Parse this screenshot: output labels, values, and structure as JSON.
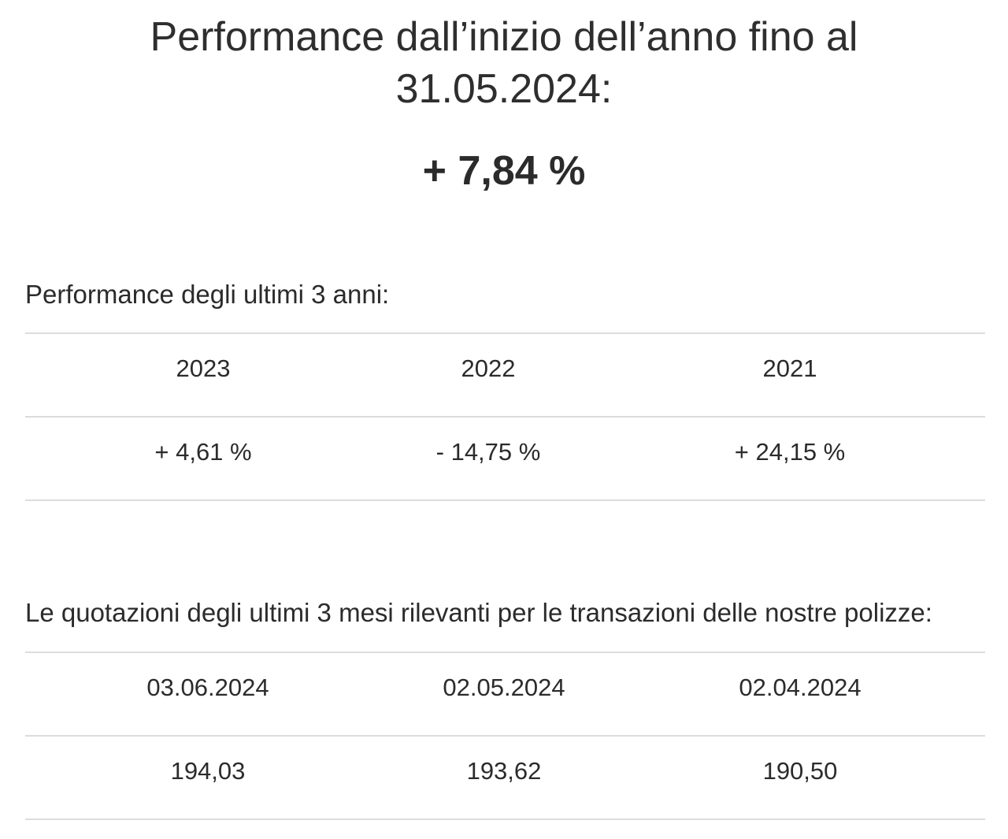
{
  "headline": {
    "line1": "Performance dall’inizio dell’anno fino al",
    "line2": "31.05.2024:"
  },
  "ytd_performance": "+ 7,84 %",
  "performance_table": {
    "title": "Performance degli ultimi 3 anni:",
    "headers": [
      "2023",
      "2022",
      "2021"
    ],
    "values": [
      "+ 4,61 %",
      "- 14,75 %",
      "+ 24,15 %"
    ]
  },
  "quotes_table": {
    "title": "Le quotazioni degli ultimi 3 mesi rilevanti per le transazioni delle nostre polizze:",
    "headers": [
      "03.06.2024",
      "02.05.2024",
      "02.04.2024"
    ],
    "values": [
      "194,03",
      "193,62",
      "190,50"
    ]
  }
}
